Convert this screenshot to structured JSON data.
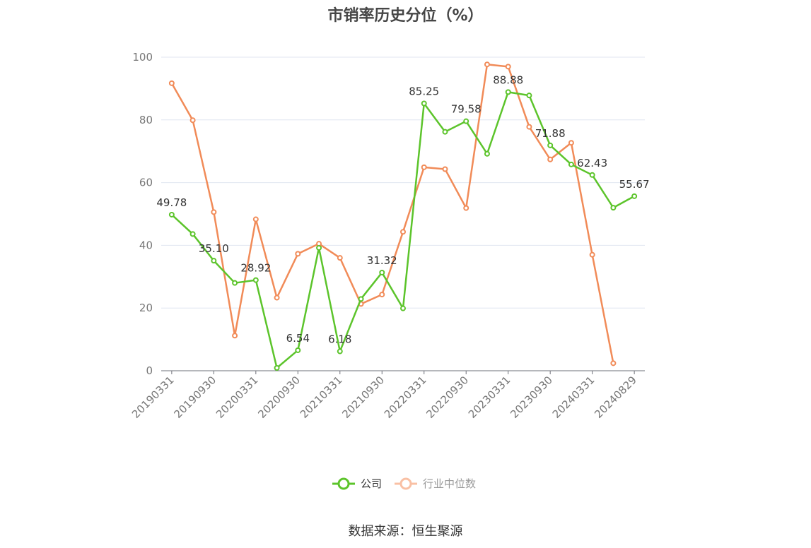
{
  "title": "市销率历史分位（%）",
  "source": "数据来源：恒生聚源",
  "chart_data": {
    "type": "line",
    "x": [
      "20190331",
      "20190630",
      "20190930",
      "20191231",
      "20200331",
      "20200630",
      "20200930",
      "20201231",
      "20210331",
      "20210630",
      "20210930",
      "20211231",
      "20220331",
      "20220630",
      "20220930",
      "20221231",
      "20230331",
      "20230630",
      "20230930",
      "20231231",
      "20240331",
      "20240630",
      "20240829"
    ],
    "x_tick_labels": [
      "20190331",
      "20190930",
      "20200331",
      "20200930",
      "20210331",
      "20210930",
      "20220331",
      "20220930",
      "20230331",
      "20230930",
      "20240331",
      "20240829"
    ],
    "ylim": [
      0,
      100
    ],
    "y_ticks": [
      0,
      20,
      40,
      60,
      80,
      100
    ],
    "grid": true,
    "legend_position": "bottom",
    "series": [
      {
        "name": "公司",
        "color": "#5cc42b",
        "values": [
          49.78,
          43.6,
          35.1,
          28.0,
          28.92,
          0.9,
          6.54,
          39.2,
          6.18,
          22.9,
          31.32,
          19.9,
          85.25,
          76.2,
          79.58,
          69.2,
          88.88,
          87.8,
          71.88,
          65.8,
          62.43,
          52.0,
          55.67
        ],
        "labels": {
          "0": "49.78",
          "2": "35.10",
          "4": "28.92",
          "6": "6.54",
          "8": "6.18",
          "10": "31.32",
          "12": "85.25",
          "14": "79.58",
          "16": "88.88",
          "18": "71.88",
          "20": "62.43",
          "22": "55.67"
        }
      },
      {
        "name": "行业中位数",
        "color": "#f18b58",
        "values": [
          91.7,
          79.9,
          50.6,
          11.2,
          48.3,
          23.3,
          37.3,
          40.5,
          36.0,
          21.3,
          24.3,
          44.3,
          64.9,
          64.3,
          51.9,
          97.7,
          97.0,
          77.8,
          67.4,
          72.7,
          37.0,
          2.4,
          null
        ]
      }
    ]
  }
}
